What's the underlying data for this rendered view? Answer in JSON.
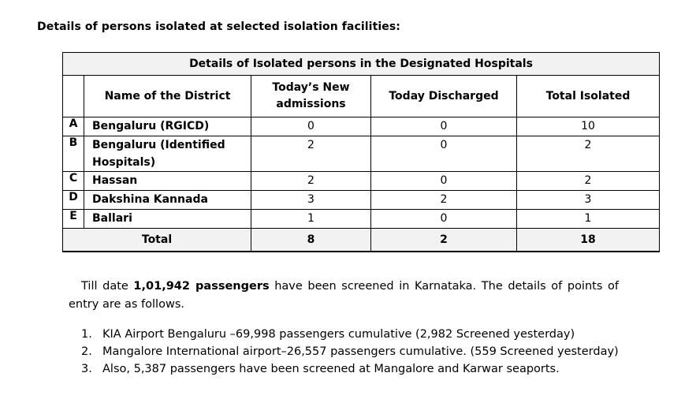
{
  "heading": "Details of persons isolated at selected isolation facilities:",
  "table": {
    "caption": "Details of Isolated persons in the Designated Hospitals",
    "headers": {
      "district": "Name of the District",
      "new_admissions": "Today’s New admissions",
      "discharged": "Today Discharged",
      "total_isolated": "Total Isolated"
    },
    "rows": [
      {
        "letter": "A",
        "district": "Bengaluru (RGICD)",
        "new": "0",
        "discharged": "0",
        "total": "10"
      },
      {
        "letter": "B",
        "district": "Bengaluru  (Identified Hospitals)",
        "new": "2",
        "discharged": "0",
        "total": "2"
      },
      {
        "letter": "C",
        "district": "Hassan",
        "new": "2",
        "discharged": "0",
        "total": "2"
      },
      {
        "letter": "D",
        "district": "Dakshina Kannada",
        "new": "3",
        "discharged": "2",
        "total": "3"
      },
      {
        "letter": "E",
        "district": "Ballari",
        "new": "1",
        "discharged": "0",
        "total": "1"
      }
    ],
    "total": {
      "label": "Total",
      "new": "8",
      "discharged": "2",
      "total": "18"
    }
  },
  "paragraph": {
    "before": "Till date ",
    "bold": "1,01,942 passengers",
    "after": " have been screened in Karnataka. The details of points of entry are as follows."
  },
  "entries": [
    {
      "marker": "1.",
      "text": "KIA Airport Bengaluru –69,998 passengers cumulative (2,982 Screened yesterday)"
    },
    {
      "marker": "2.",
      "text": "Mangalore International airport–26,557 passengers cumulative. (559 Screened yesterday)"
    },
    {
      "marker": "3.",
      "text": "Also, 5,387 passengers have been screened at Mangalore and Karwar seaports."
    }
  ]
}
